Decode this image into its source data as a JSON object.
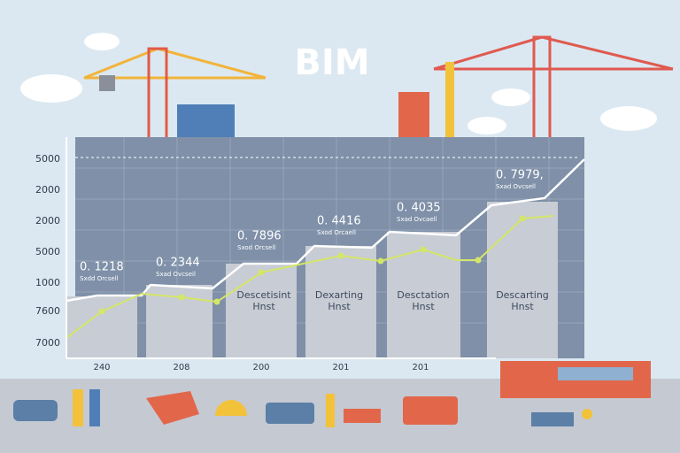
{
  "header": {
    "title": "BIM"
  },
  "y_labels": [
    "5000",
    "2000",
    "2000",
    "5000",
    "1000",
    "7600",
    "7000"
  ],
  "x_labels": [
    "240",
    "208",
    "200",
    "201",
    "201"
  ],
  "annotations": [
    {
      "value": "0. 1218",
      "caption": "Sxdd Orcsell"
    },
    {
      "value": "0. 2344",
      "caption": "Sxad Ovcseil"
    },
    {
      "value": "0. 7896",
      "caption": "Sxod Orcsell"
    },
    {
      "value": "0. 4416",
      "caption": "Sxod Orcaell"
    },
    {
      "value": "0. 4035",
      "caption": "Sxad Ovcaell"
    },
    {
      "value": "0. 7979,",
      "caption": "Sxad Ovcsell"
    }
  ],
  "bar_labels": [
    {
      "name": "Descetisint",
      "sub": "Hnst"
    },
    {
      "name": "Dexarting",
      "sub": "Hnst"
    },
    {
      "name": "Desctation",
      "sub": "Hnst"
    },
    {
      "name": "Descarting",
      "sub": "Hnst"
    }
  ]
}
